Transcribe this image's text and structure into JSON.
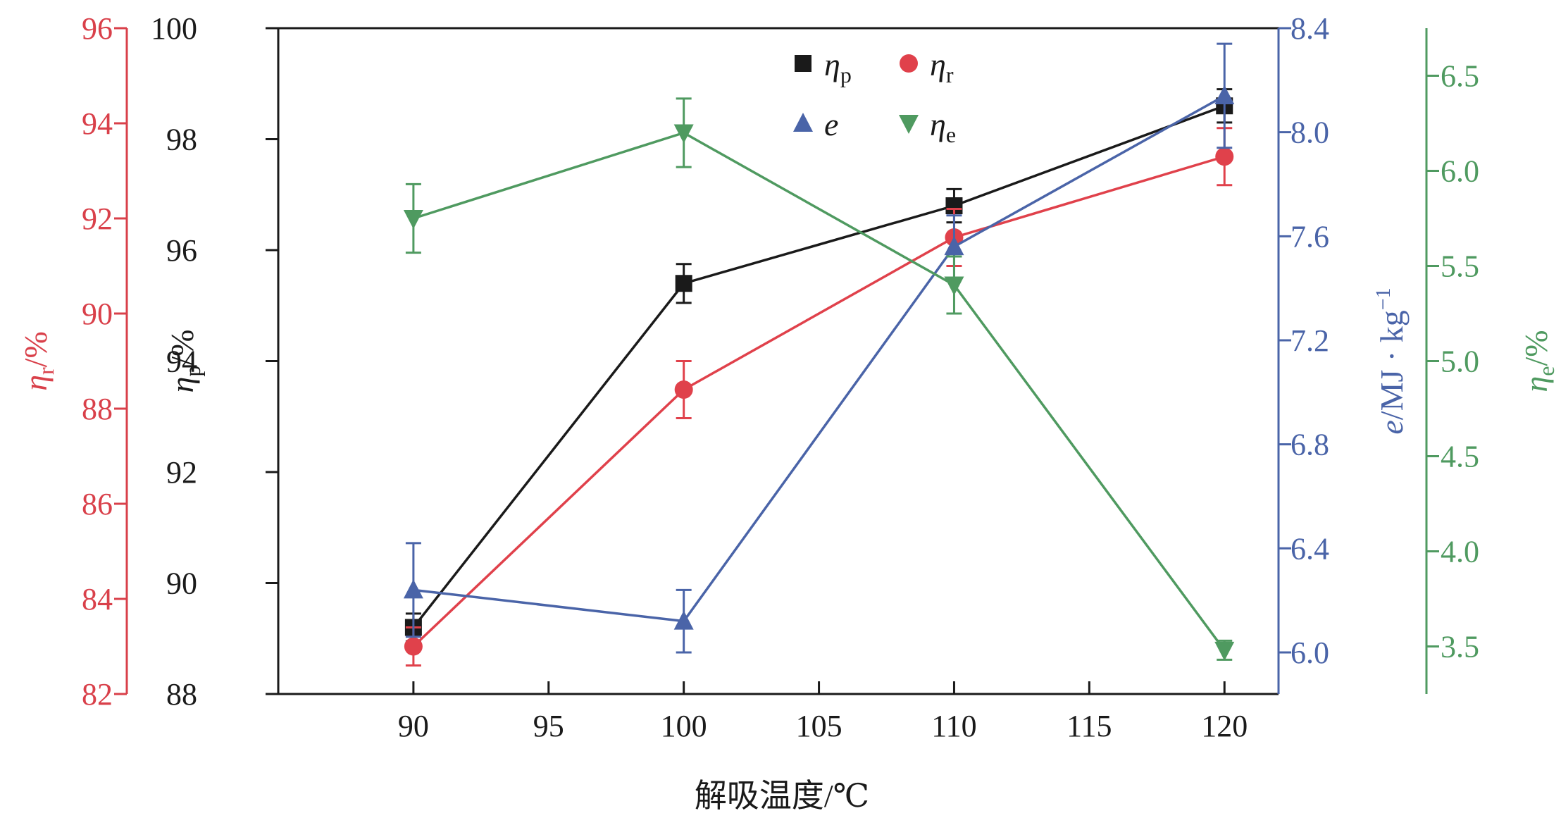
{
  "chart_data": {
    "type": "line",
    "xlabel": "解吸温度/℃",
    "xlim": [
      85,
      122
    ],
    "x_ticks": [
      90,
      95,
      100,
      105,
      110,
      115,
      120
    ],
    "x_tick_labels": [
      "90",
      "95",
      "100",
      "105",
      "110",
      "115",
      "120"
    ],
    "legend_position": "top-center",
    "axes": [
      {
        "id": "p",
        "side": "left-inner",
        "label_main": "η",
        "label_sub": "p",
        "label_suffix": "/%",
        "ylim": [
          88,
          100
        ],
        "ticks": [
          88,
          90,
          92,
          94,
          96,
          98,
          100
        ],
        "tick_labels": [
          "88",
          "90",
          "92",
          "94",
          "96",
          "98",
          "100"
        ],
        "color": "#1a1a1a"
      },
      {
        "id": "r",
        "side": "left-outer",
        "label_main": "η",
        "label_sub": "r",
        "label_suffix": "/%",
        "ylim": [
          82,
          96
        ],
        "ticks": [
          82,
          84,
          86,
          88,
          90,
          92,
          94,
          96
        ],
        "tick_labels": [
          "82",
          "84",
          "86",
          "88",
          "90",
          "92",
          "94",
          "96"
        ],
        "color": "#d9404a"
      },
      {
        "id": "e",
        "side": "right-inner",
        "label_main": "e",
        "label_suffix": "/MJ · kg",
        "label_sup": "−1",
        "ylim": [
          5.84,
          8.4
        ],
        "ticks": [
          6.0,
          6.4,
          6.8,
          7.2,
          7.6,
          8.0,
          8.4
        ],
        "tick_labels": [
          "6.0",
          "6.4",
          "6.8",
          "7.2",
          "7.6",
          "8.0",
          "8.4"
        ],
        "color": "#4a64a8"
      },
      {
        "id": "ee",
        "side": "right-outer",
        "label_main": "η",
        "label_sub": "e",
        "label_suffix": "/%",
        "ylim": [
          3.25,
          6.75
        ],
        "ticks": [
          3.5,
          4.0,
          4.5,
          5.0,
          5.5,
          6.0,
          6.5
        ],
        "tick_labels": [
          "3.5",
          "4.0",
          "4.5",
          "5.0",
          "5.5",
          "6.0",
          "6.5"
        ],
        "color": "#4f9a60"
      }
    ],
    "series": [
      {
        "name": "η",
        "sub": "p",
        "axis": "p",
        "marker": "square",
        "color": "#1a1a1a",
        "x": [
          90,
          100,
          110,
          120
        ],
        "values": [
          89.2,
          95.4,
          96.8,
          98.6
        ],
        "err": [
          0.25,
          0.35,
          0.3,
          0.3
        ]
      },
      {
        "name": "η",
        "sub": "r",
        "axis": "r",
        "marker": "circle",
        "color": "#e0414b",
        "x": [
          90,
          100,
          110,
          120
        ],
        "values": [
          83.0,
          88.4,
          91.6,
          93.3
        ],
        "err": [
          0.4,
          0.6,
          0.6,
          0.6
        ]
      },
      {
        "name": "e",
        "sub": "",
        "axis": "e",
        "marker": "triangle-up",
        "color": "#4a64a8",
        "x": [
          90,
          100,
          110,
          120
        ],
        "values": [
          6.24,
          6.12,
          7.56,
          8.14
        ],
        "err": [
          0.18,
          0.12,
          0.12,
          0.2
        ]
      },
      {
        "name": "η",
        "sub": "e",
        "axis": "ee",
        "marker": "triangle-down",
        "color": "#4f9a60",
        "x": [
          90,
          100,
          110,
          120
        ],
        "values": [
          5.75,
          6.2,
          5.4,
          3.48
        ],
        "err": [
          0.18,
          0.18,
          0.15,
          0.05
        ]
      }
    ]
  }
}
